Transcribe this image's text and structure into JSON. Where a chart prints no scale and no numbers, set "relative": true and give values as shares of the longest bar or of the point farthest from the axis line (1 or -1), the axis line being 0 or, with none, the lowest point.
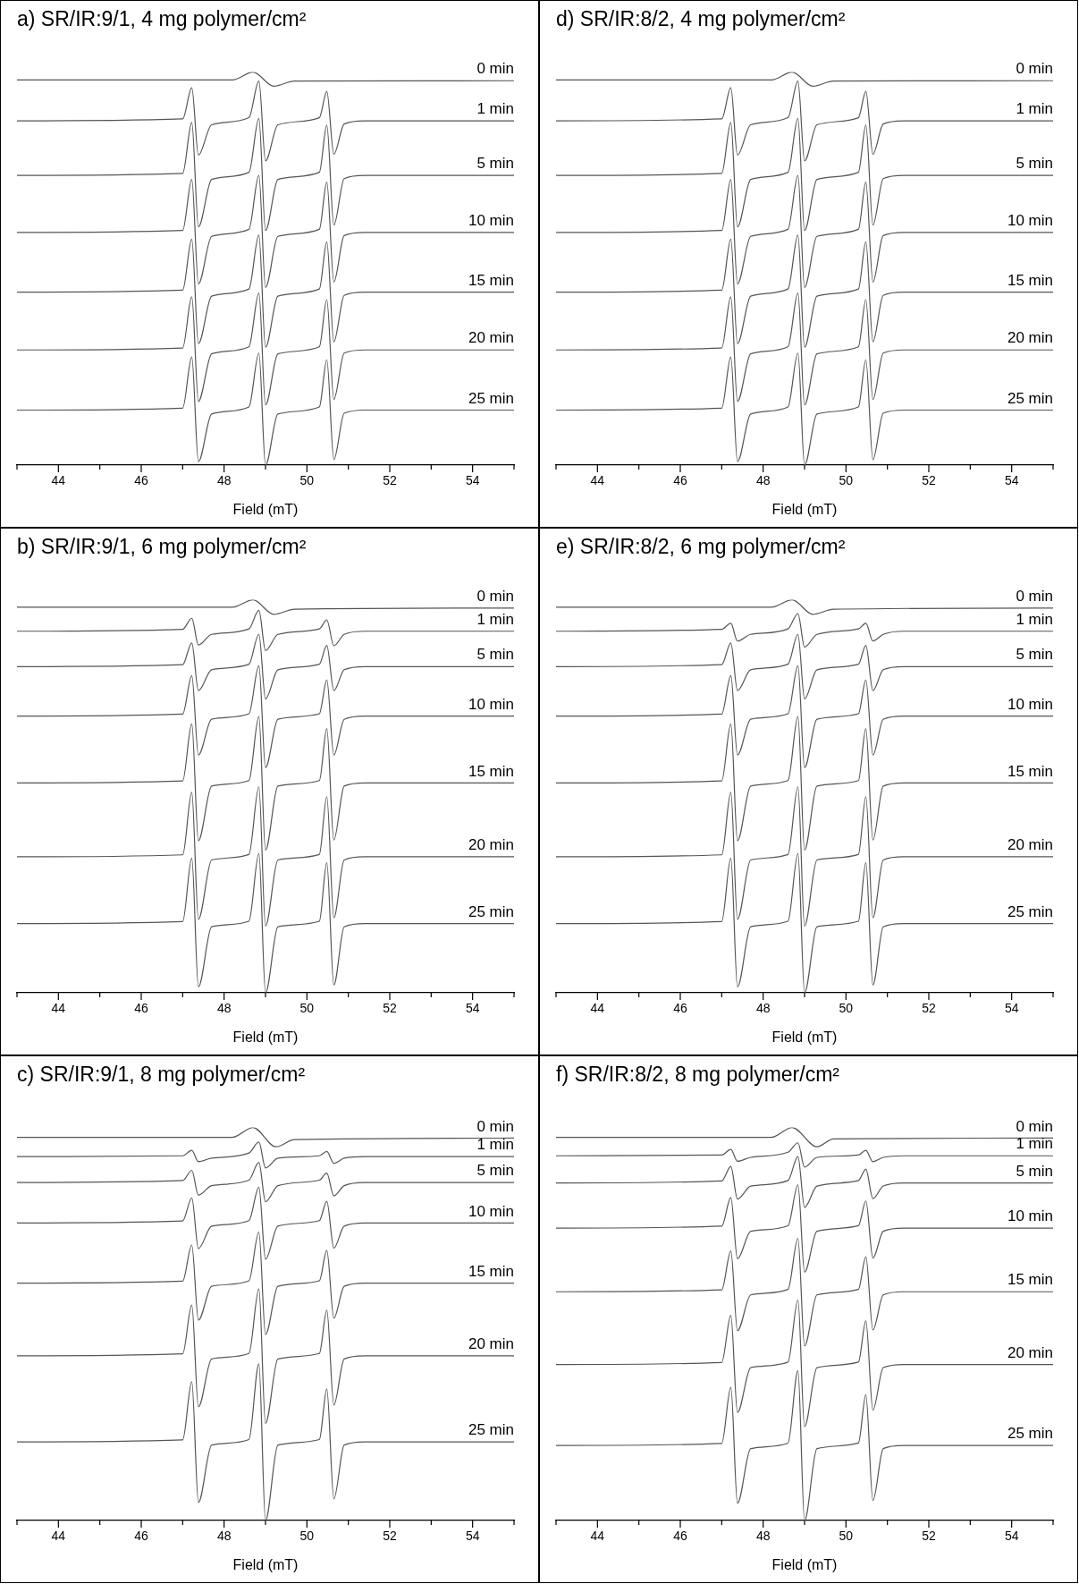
{
  "chart_data": [
    {
      "type": "line",
      "title": "a) SR/IR:9/1, 4 mg polymer/cm²",
      "xlabel": "Field (mT)",
      "relative": true,
      "xlim": [
        43,
        55
      ],
      "xticks": [
        {
          "value": 43,
          "label": null
        },
        44,
        {
          "value": 45,
          "label": null
        },
        46,
        {
          "value": 47,
          "label": null
        },
        48,
        {
          "value": 49,
          "label": null
        },
        50,
        {
          "value": 51,
          "label": null
        },
        52,
        {
          "value": 53,
          "label": null
        },
        54,
        {
          "value": 55,
          "label": null
        }
      ],
      "x": [
        43,
        47.0,
        47.22,
        47.38,
        47.7,
        48.6,
        48.84,
        49.0,
        49.3,
        50.3,
        50.48,
        50.65,
        50.9,
        51.4,
        55
      ],
      "series": [
        {
          "name": "0 min",
          "color": "#555555",
          "x": [
            43,
            48.2,
            48.7,
            49.2,
            49.7,
            55
          ],
          "values": [
            0.98,
            0.98,
            1.0,
            0.964,
            0.977,
            0.978
          ]
        },
        {
          "name": "1 min",
          "color": "#555555",
          "values": [
            0.876,
            0.881,
            0.96,
            0.789,
            0.866,
            0.884,
            0.977,
            0.774,
            0.866,
            0.884,
            0.951,
            0.791,
            0.868,
            0.876,
            0.876
          ]
        },
        {
          "name": "5 min",
          "color": "#555555",
          "values": [
            0.737,
            0.742,
            0.872,
            0.606,
            0.727,
            0.745,
            0.882,
            0.597,
            0.727,
            0.745,
            0.865,
            0.611,
            0.729,
            0.737,
            0.737
          ]
        },
        {
          "name": "10 min",
          "color": "#555555",
          "values": [
            0.592,
            0.597,
            0.727,
            0.461,
            0.582,
            0.6,
            0.737,
            0.452,
            0.582,
            0.6,
            0.72,
            0.466,
            0.584,
            0.592,
            0.592
          ]
        },
        {
          "name": "15 min",
          "color": "#555555",
          "values": [
            0.44,
            0.445,
            0.575,
            0.309,
            0.43,
            0.448,
            0.585,
            0.3,
            0.43,
            0.448,
            0.568,
            0.314,
            0.432,
            0.44,
            0.44
          ]
        },
        {
          "name": "20 min",
          "color": "#555555",
          "values": [
            0.293,
            0.298,
            0.428,
            0.162,
            0.283,
            0.301,
            0.438,
            0.153,
            0.283,
            0.301,
            0.421,
            0.167,
            0.285,
            0.293,
            0.293
          ]
        },
        {
          "name": "25 min",
          "color": "#555555",
          "values": [
            0.14,
            0.145,
            0.275,
            0.009,
            0.13,
            0.148,
            0.285,
            0,
            0.13,
            0.148,
            0.268,
            0.014,
            0.132,
            0.14,
            0.14
          ]
        }
      ]
    },
    {
      "type": "line",
      "title": "d) SR/IR:8/2, 4 mg polymer/cm²",
      "xlabel": "Field (mT)",
      "relative": true,
      "xlim": [
        43,
        55
      ],
      "xticks": [
        {
          "value": 43,
          "label": null
        },
        44,
        {
          "value": 45,
          "label": null
        },
        46,
        {
          "value": 47,
          "label": null
        },
        48,
        {
          "value": 49,
          "label": null
        },
        50,
        {
          "value": 51,
          "label": null
        },
        52,
        {
          "value": 53,
          "label": null
        },
        54,
        {
          "value": 55,
          "label": null
        }
      ],
      "x": [
        43,
        47.0,
        47.22,
        47.38,
        47.7,
        48.6,
        48.84,
        49.0,
        49.3,
        50.3,
        50.48,
        50.65,
        50.9,
        51.4,
        55
      ],
      "series": [
        {
          "name": "0 min",
          "color": "#555555",
          "x": [
            43,
            48.2,
            48.7,
            49.2,
            49.7,
            55
          ],
          "values": [
            0.98,
            0.98,
            1.0,
            0.964,
            0.977,
            0.978
          ]
        },
        {
          "name": "1 min",
          "color": "#555555",
          "values": [
            0.876,
            0.881,
            0.96,
            0.789,
            0.866,
            0.884,
            0.977,
            0.774,
            0.866,
            0.884,
            0.951,
            0.791,
            0.868,
            0.876,
            0.876
          ]
        },
        {
          "name": "5 min",
          "color": "#555555",
          "values": [
            0.737,
            0.742,
            0.872,
            0.606,
            0.727,
            0.745,
            0.882,
            0.597,
            0.727,
            0.745,
            0.865,
            0.611,
            0.729,
            0.737,
            0.737
          ]
        },
        {
          "name": "10 min",
          "color": "#555555",
          "values": [
            0.592,
            0.597,
            0.727,
            0.461,
            0.582,
            0.6,
            0.737,
            0.452,
            0.582,
            0.6,
            0.72,
            0.466,
            0.584,
            0.592,
            0.592
          ]
        },
        {
          "name": "15 min",
          "color": "#555555",
          "values": [
            0.44,
            0.445,
            0.575,
            0.309,
            0.43,
            0.448,
            0.585,
            0.3,
            0.43,
            0.448,
            0.568,
            0.314,
            0.432,
            0.44,
            0.44
          ]
        },
        {
          "name": "20 min",
          "color": "#555555",
          "values": [
            0.293,
            0.298,
            0.428,
            0.162,
            0.283,
            0.301,
            0.438,
            0.153,
            0.283,
            0.301,
            0.421,
            0.167,
            0.285,
            0.293,
            0.293
          ]
        },
        {
          "name": "25 min",
          "color": "#555555",
          "values": [
            0.14,
            0.145,
            0.275,
            0.009,
            0.13,
            0.148,
            0.285,
            0,
            0.13,
            0.148,
            0.268,
            0.014,
            0.132,
            0.14,
            0.14
          ]
        }
      ]
    },
    {
      "type": "line",
      "title": "b) SR/IR:9/1, 6 mg polymer/cm²",
      "xlabel": "Field (mT)",
      "relative": true,
      "xlim": [
        43,
        55
      ],
      "xticks": [
        {
          "value": 43,
          "label": null
        },
        44,
        {
          "value": 45,
          "label": null
        },
        46,
        {
          "value": 47,
          "label": null
        },
        48,
        {
          "value": 49,
          "label": null
        },
        50,
        {
          "value": 51,
          "label": null
        },
        52,
        {
          "value": 53,
          "label": null
        },
        54,
        {
          "value": 55,
          "label": null
        }
      ],
      "x": [
        43,
        47.0,
        47.22,
        47.38,
        47.7,
        48.6,
        48.84,
        49.0,
        49.3,
        50.3,
        50.48,
        50.65,
        50.9,
        51.4,
        55
      ],
      "series": [
        {
          "name": "0 min",
          "color": "#555555",
          "x": [
            43,
            48.2,
            48.7,
            49.2,
            49.7,
            55
          ],
          "values": [
            0.981,
            0.981,
            1.0,
            0.963,
            0.976,
            0.979
          ]
        },
        {
          "name": "1 min",
          "color": "#555555",
          "values": [
            0.92,
            0.925,
            0.953,
            0.885,
            0.912,
            0.926,
            0.973,
            0.871,
            0.912,
            0.926,
            0.949,
            0.883,
            0.912,
            0.92,
            0.92
          ]
        },
        {
          "name": "5 min",
          "color": "#555555",
          "values": [
            0.83,
            0.835,
            0.89,
            0.769,
            0.822,
            0.836,
            0.912,
            0.748,
            0.822,
            0.836,
            0.884,
            0.769,
            0.822,
            0.83,
            0.83
          ]
        },
        {
          "name": "10 min",
          "color": "#555555",
          "values": [
            0.704,
            0.709,
            0.807,
            0.605,
            0.696,
            0.71,
            0.832,
            0.573,
            0.696,
            0.71,
            0.796,
            0.605,
            0.696,
            0.704,
            0.704
          ]
        },
        {
          "name": "15 min",
          "color": "#555555",
          "values": [
            0.534,
            0.539,
            0.684,
            0.387,
            0.526,
            0.54,
            0.703,
            0.363,
            0.526,
            0.54,
            0.672,
            0.389,
            0.526,
            0.534,
            0.534
          ]
        },
        {
          "name": "20 min",
          "color": "#555555",
          "values": [
            0.346,
            0.351,
            0.51,
            0.187,
            0.338,
            0.352,
            0.524,
            0.17,
            0.338,
            0.352,
            0.499,
            0.191,
            0.338,
            0.346,
            0.346
          ]
        },
        {
          "name": "25 min",
          "color": "#555555",
          "values": [
            0.176,
            0.181,
            0.343,
            0.015,
            0.168,
            0.182,
            0.354,
            0,
            0.168,
            0.182,
            0.331,
            0.02,
            0.168,
            0.176,
            0.176
          ]
        }
      ]
    },
    {
      "type": "line",
      "title": "e) SR/IR:8/2, 6 mg polymer/cm²",
      "xlabel": "Field (mT)",
      "relative": true,
      "xlim": [
        43,
        55
      ],
      "xticks": [
        {
          "value": 43,
          "label": null
        },
        44,
        {
          "value": 45,
          "label": null
        },
        46,
        {
          "value": 47,
          "label": null
        },
        48,
        {
          "value": 49,
          "label": null
        },
        50,
        {
          "value": 51,
          "label": null
        },
        52,
        {
          "value": 53,
          "label": null
        },
        54,
        {
          "value": 55,
          "label": null
        }
      ],
      "x": [
        43,
        47.0,
        47.22,
        47.38,
        47.7,
        48.6,
        48.84,
        49.0,
        49.3,
        50.3,
        50.48,
        50.65,
        50.9,
        51.4,
        55
      ],
      "series": [
        {
          "name": "0 min",
          "color": "#555555",
          "x": [
            43,
            48.2,
            48.7,
            49.2,
            49.7,
            55
          ],
          "values": [
            0.981,
            0.981,
            1.0,
            0.963,
            0.976,
            0.979
          ]
        },
        {
          "name": "1 min",
          "color": "#555555",
          "values": [
            0.92,
            0.925,
            0.94,
            0.895,
            0.912,
            0.926,
            0.965,
            0.88,
            0.912,
            0.926,
            0.94,
            0.895,
            0.912,
            0.92,
            0.92
          ]
        },
        {
          "name": "5 min",
          "color": "#555555",
          "values": [
            0.83,
            0.835,
            0.89,
            0.769,
            0.822,
            0.836,
            0.912,
            0.748,
            0.822,
            0.836,
            0.884,
            0.769,
            0.822,
            0.83,
            0.83
          ]
        },
        {
          "name": "10 min",
          "color": "#555555",
          "values": [
            0.704,
            0.709,
            0.807,
            0.605,
            0.696,
            0.71,
            0.832,
            0.573,
            0.696,
            0.71,
            0.796,
            0.605,
            0.696,
            0.704,
            0.704
          ]
        },
        {
          "name": "15 min",
          "color": "#555555",
          "values": [
            0.534,
            0.539,
            0.684,
            0.387,
            0.526,
            0.54,
            0.703,
            0.363,
            0.526,
            0.54,
            0.672,
            0.389,
            0.526,
            0.534,
            0.534
          ]
        },
        {
          "name": "20 min",
          "color": "#555555",
          "values": [
            0.346,
            0.351,
            0.51,
            0.187,
            0.338,
            0.352,
            0.524,
            0.17,
            0.338,
            0.352,
            0.499,
            0.191,
            0.338,
            0.346,
            0.346
          ]
        },
        {
          "name": "25 min",
          "color": "#555555",
          "values": [
            0.176,
            0.181,
            0.343,
            0.015,
            0.168,
            0.182,
            0.354,
            0,
            0.168,
            0.182,
            0.331,
            0.02,
            0.168,
            0.176,
            0.176
          ]
        }
      ]
    },
    {
      "type": "line",
      "title": "c) SR/IR:9/1, 8 mg polymer/cm²",
      "xlabel": "Field (mT)",
      "relative": true,
      "xlim": [
        43,
        55
      ],
      "xticks": [
        {
          "value": 43,
          "label": null
        },
        44,
        {
          "value": 45,
          "label": null
        },
        46,
        {
          "value": 47,
          "label": null
        },
        48,
        {
          "value": 49,
          "label": null
        },
        50,
        {
          "value": 51,
          "label": null
        },
        52,
        {
          "value": 53,
          "label": null
        },
        54,
        {
          "value": 55,
          "label": null
        }
      ],
      "x": [
        43,
        47.0,
        47.22,
        47.38,
        47.7,
        48.6,
        48.84,
        49.0,
        49.3,
        50.3,
        50.48,
        50.65,
        50.9,
        51.4,
        55
      ],
      "series": [
        {
          "name": "0 min",
          "color": "#555555",
          "x": [
            43,
            48.2,
            48.7,
            49.25,
            49.7,
            55
          ],
          "values": [
            0.975,
            0.975,
            1.0,
            0.951,
            0.969,
            0.973
          ]
        },
        {
          "name": "1 min",
          "color": "#555555",
          "values": [
            0.926,
            0.928,
            0.942,
            0.913,
            0.922,
            0.935,
            0.963,
            0.897,
            0.922,
            0.928,
            0.939,
            0.909,
            0.922,
            0.926,
            0.926
          ]
        },
        {
          "name": "5 min",
          "color": "#555555",
          "values": [
            0.86,
            0.865,
            0.891,
            0.828,
            0.852,
            0.866,
            0.911,
            0.811,
            0.852,
            0.866,
            0.884,
            0.826,
            0.852,
            0.86,
            0.86
          ]
        },
        {
          "name": "10 min",
          "color": "#555555",
          "values": [
            0.757,
            0.762,
            0.821,
            0.692,
            0.749,
            0.763,
            0.848,
            0.665,
            0.749,
            0.763,
            0.812,
            0.693,
            0.749,
            0.757,
            0.757
          ]
        },
        {
          "name": "15 min",
          "color": "#555555",
          "values": [
            0.604,
            0.609,
            0.701,
            0.51,
            0.596,
            0.61,
            0.734,
            0.473,
            0.596,
            0.61,
            0.687,
            0.515,
            0.596,
            0.604,
            0.604
          ]
        },
        {
          "name": "20 min",
          "color": "#555555",
          "values": [
            0.419,
            0.424,
            0.548,
            0.289,
            0.411,
            0.425,
            0.589,
            0.247,
            0.411,
            0.425,
            0.535,
            0.294,
            0.411,
            0.419,
            0.419
          ]
        },
        {
          "name": "25 min",
          "color": "#555555",
          "values": [
            0.2,
            0.205,
            0.353,
            0.046,
            0.192,
            0.206,
            0.398,
            0,
            0.192,
            0.206,
            0.335,
            0.055,
            0.192,
            0.2,
            0.2
          ]
        }
      ]
    },
    {
      "type": "line",
      "title": "f) SR/IR:8/2, 8 mg polymer/cm²",
      "xlabel": "Field (mT)",
      "relative": true,
      "xlim": [
        43,
        55
      ],
      "xticks": [
        {
          "value": 43,
          "label": null
        },
        44,
        {
          "value": 45,
          "label": null
        },
        46,
        {
          "value": 47,
          "label": null
        },
        48,
        {
          "value": 49,
          "label": null
        },
        50,
        {
          "value": 51,
          "label": null
        },
        52,
        {
          "value": 53,
          "label": null
        },
        54,
        {
          "value": 55,
          "label": null
        }
      ],
      "x": [
        43,
        47.0,
        47.22,
        47.38,
        47.7,
        48.6,
        48.84,
        49.0,
        49.3,
        50.3,
        50.48,
        50.65,
        50.9,
        51.4,
        55
      ],
      "series": [
        {
          "name": "0 min",
          "color": "#555555",
          "x": [
            43,
            48.2,
            48.7,
            49.3,
            49.7,
            55
          ],
          "values": [
            0.975,
            0.975,
            1.0,
            0.951,
            0.971,
            0.973
          ]
        },
        {
          "name": "1 min",
          "color": "#555555",
          "values": [
            0.928,
            0.93,
            0.944,
            0.914,
            0.924,
            0.937,
            0.961,
            0.899,
            0.924,
            0.93,
            0.942,
            0.913,
            0.924,
            0.928,
            0.928
          ]
        },
        {
          "name": "5 min",
          "color": "#555555",
          "values": [
            0.859,
            0.864,
            0.901,
            0.818,
            0.851,
            0.865,
            0.926,
            0.797,
            0.851,
            0.865,
            0.894,
            0.819,
            0.851,
            0.859,
            0.859
          ]
        },
        {
          "name": "10 min",
          "color": "#555555",
          "values": [
            0.744,
            0.749,
            0.822,
            0.666,
            0.736,
            0.75,
            0.854,
            0.632,
            0.736,
            0.75,
            0.813,
            0.668,
            0.736,
            0.744,
            0.744
          ]
        },
        {
          "name": "15 min",
          "color": "#555555",
          "values": [
            0.582,
            0.587,
            0.686,
            0.483,
            0.574,
            0.588,
            0.718,
            0.444,
            0.574,
            0.588,
            0.671,
            0.485,
            0.574,
            0.582,
            0.582
          ]
        },
        {
          "name": "20 min",
          "color": "#555555",
          "values": [
            0.397,
            0.402,
            0.522,
            0.275,
            0.389,
            0.403,
            0.561,
            0.239,
            0.389,
            0.403,
            0.508,
            0.281,
            0.389,
            0.397,
            0.397
          ]
        },
        {
          "name": "25 min",
          "color": "#555555",
          "values": [
            0.191,
            0.196,
            0.339,
            0.044,
            0.183,
            0.197,
            0.381,
            0,
            0.183,
            0.197,
            0.32,
            0.051,
            0.183,
            0.191,
            0.191
          ]
        }
      ]
    }
  ]
}
